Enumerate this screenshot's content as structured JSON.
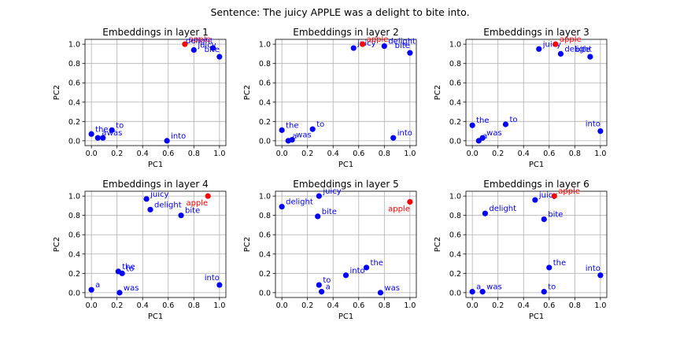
{
  "suptitle": "Sentence: The juicy APPLE was a delight to bite into.",
  "colors": {
    "normal": "#0000ff",
    "highlight": "#ff0000",
    "grid": "#b0b0b0",
    "axis": "#000000"
  },
  "chart_data": [
    {
      "type": "scatter",
      "title": "Embeddings in layer 1",
      "xlabel": "PC1",
      "ylabel": "PC2",
      "xlim": [
        -0.05,
        1.05
      ],
      "ylim": [
        -0.05,
        1.05
      ],
      "xticks": [
        "0.0",
        "0.2",
        "0.4",
        "0.6",
        "0.8",
        "1.0"
      ],
      "yticks": [
        "0.0",
        "0.2",
        "0.4",
        "0.6",
        "0.8",
        "1.0"
      ],
      "grid": true,
      "points": [
        {
          "label": "the",
          "x": 0.0,
          "y": 0.07
        },
        {
          "label": "juicy",
          "x": 0.8,
          "y": 0.94
        },
        {
          "label": "apple",
          "x": 0.73,
          "y": 1.0,
          "highlight": true
        },
        {
          "label": "was",
          "x": 0.09,
          "y": 0.03
        },
        {
          "label": "a",
          "x": 0.05,
          "y": 0.03
        },
        {
          "label": "delight",
          "x": 0.95,
          "y": 0.96
        },
        {
          "label": "to",
          "x": 0.16,
          "y": 0.11
        },
        {
          "label": "bite",
          "x": 1.0,
          "y": 0.87
        },
        {
          "label": "into",
          "x": 0.59,
          "y": 0.0
        }
      ]
    },
    {
      "type": "scatter",
      "title": "Embeddings in layer 2",
      "xlabel": "PC1",
      "ylabel": "PC2",
      "xlim": [
        -0.05,
        1.05
      ],
      "ylim": [
        -0.05,
        1.05
      ],
      "xticks": [
        "0.0",
        "0.2",
        "0.4",
        "0.6",
        "0.8",
        "1.0"
      ],
      "yticks": [
        "0.0",
        "0.2",
        "0.4",
        "0.6",
        "0.8",
        "1.0"
      ],
      "grid": true,
      "points": [
        {
          "label": "the",
          "x": 0.0,
          "y": 0.11
        },
        {
          "label": "juicy",
          "x": 0.56,
          "y": 0.96
        },
        {
          "label": "apple",
          "x": 0.63,
          "y": 1.0,
          "highlight": true
        },
        {
          "label": "was",
          "x": 0.08,
          "y": 0.01
        },
        {
          "label": "a",
          "x": 0.05,
          "y": 0.0
        },
        {
          "label": "delight",
          "x": 0.8,
          "y": 0.98
        },
        {
          "label": "to",
          "x": 0.24,
          "y": 0.12
        },
        {
          "label": "bite",
          "x": 1.0,
          "y": 0.91
        },
        {
          "label": "into",
          "x": 0.87,
          "y": 0.03
        }
      ]
    },
    {
      "type": "scatter",
      "title": "Embeddings in layer 3",
      "xlabel": "PC1",
      "ylabel": "PC2",
      "xlim": [
        -0.05,
        1.05
      ],
      "ylim": [
        -0.05,
        1.05
      ],
      "xticks": [
        "0.0",
        "0.2",
        "0.4",
        "0.6",
        "0.8",
        "1.0"
      ],
      "yticks": [
        "0.0",
        "0.2",
        "0.4",
        "0.6",
        "0.8",
        "1.0"
      ],
      "grid": true,
      "points": [
        {
          "label": "the",
          "x": 0.0,
          "y": 0.16
        },
        {
          "label": "juicy",
          "x": 0.52,
          "y": 0.95
        },
        {
          "label": "apple",
          "x": 0.65,
          "y": 1.0,
          "highlight": true
        },
        {
          "label": "was",
          "x": 0.08,
          "y": 0.03
        },
        {
          "label": "a",
          "x": 0.05,
          "y": 0.0
        },
        {
          "label": "delight",
          "x": 0.69,
          "y": 0.9
        },
        {
          "label": "to",
          "x": 0.26,
          "y": 0.17
        },
        {
          "label": "bite",
          "x": 0.92,
          "y": 0.87
        },
        {
          "label": "into",
          "x": 1.0,
          "y": 0.1
        }
      ]
    },
    {
      "type": "scatter",
      "title": "Embeddings in layer 4",
      "xlabel": "PC1",
      "ylabel": "PC2",
      "xlim": [
        -0.05,
        1.05
      ],
      "ylim": [
        -0.05,
        1.05
      ],
      "xticks": [
        "0.0",
        "0.2",
        "0.4",
        "0.6",
        "0.8",
        "1.0"
      ],
      "yticks": [
        "0.0",
        "0.2",
        "0.4",
        "0.6",
        "0.8",
        "1.0"
      ],
      "grid": true,
      "points": [
        {
          "label": "the",
          "x": 0.21,
          "y": 0.22
        },
        {
          "label": "juicy",
          "x": 0.43,
          "y": 0.97
        },
        {
          "label": "apple",
          "x": 0.91,
          "y": 1.0,
          "highlight": true
        },
        {
          "label": "was",
          "x": 0.22,
          "y": 0.0
        },
        {
          "label": "a",
          "x": 0.0,
          "y": 0.03
        },
        {
          "label": "delight",
          "x": 0.46,
          "y": 0.86
        },
        {
          "label": "to",
          "x": 0.24,
          "y": 0.2
        },
        {
          "label": "bite",
          "x": 0.7,
          "y": 0.8
        },
        {
          "label": "into",
          "x": 1.0,
          "y": 0.08
        }
      ]
    },
    {
      "type": "scatter",
      "title": "Embeddings in layer 5",
      "xlabel": "PC1",
      "ylabel": "PC2",
      "xlim": [
        -0.05,
        1.05
      ],
      "ylim": [
        -0.05,
        1.05
      ],
      "xticks": [
        "0.0",
        "0.2",
        "0.4",
        "0.6",
        "0.8",
        "1.0"
      ],
      "yticks": [
        "0.0",
        "0.2",
        "0.4",
        "0.6",
        "0.8",
        "1.0"
      ],
      "grid": true,
      "points": [
        {
          "label": "the",
          "x": 0.66,
          "y": 0.26
        },
        {
          "label": "juicy",
          "x": 0.29,
          "y": 1.0
        },
        {
          "label": "apple",
          "x": 1.0,
          "y": 0.94,
          "highlight": true
        },
        {
          "label": "was",
          "x": 0.77,
          "y": 0.0
        },
        {
          "label": "a",
          "x": 0.31,
          "y": 0.01
        },
        {
          "label": "delight",
          "x": 0.0,
          "y": 0.89
        },
        {
          "label": "to",
          "x": 0.29,
          "y": 0.08
        },
        {
          "label": "bite",
          "x": 0.28,
          "y": 0.79
        },
        {
          "label": "into",
          "x": 0.5,
          "y": 0.18
        }
      ]
    },
    {
      "type": "scatter",
      "title": "Embeddings in layer 6",
      "xlabel": "PC1",
      "ylabel": "PC2",
      "xlim": [
        -0.05,
        1.05
      ],
      "ylim": [
        -0.05,
        1.05
      ],
      "xticks": [
        "0.0",
        "0.2",
        "0.4",
        "0.6",
        "0.8",
        "1.0"
      ],
      "yticks": [
        "0.0",
        "0.2",
        "0.4",
        "0.6",
        "0.8",
        "1.0"
      ],
      "grid": true,
      "points": [
        {
          "label": "the",
          "x": 0.6,
          "y": 0.26
        },
        {
          "label": "juicy",
          "x": 0.49,
          "y": 0.96
        },
        {
          "label": "apple",
          "x": 0.64,
          "y": 1.0,
          "highlight": true
        },
        {
          "label": "was",
          "x": 0.08,
          "y": 0.01
        },
        {
          "label": "a",
          "x": 0.0,
          "y": 0.01
        },
        {
          "label": "delight",
          "x": 0.1,
          "y": 0.82
        },
        {
          "label": "to",
          "x": 0.56,
          "y": 0.01
        },
        {
          "label": "bite",
          "x": 0.56,
          "y": 0.76
        },
        {
          "label": "into",
          "x": 1.0,
          "y": 0.18
        }
      ]
    }
  ]
}
